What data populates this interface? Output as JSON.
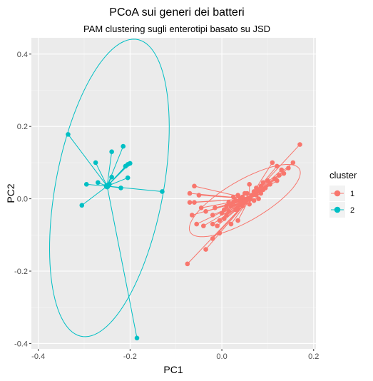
{
  "chart_data": {
    "type": "scatter",
    "title": "PCoA sui generi dei batteri",
    "subtitle": "PAM clustering sugli enterotipi basato su JSD",
    "xlabel": "PC1",
    "ylabel": "PC2",
    "xlim": [
      -0.415,
      0.205
    ],
    "ylim": [
      -0.415,
      0.445
    ],
    "x_ticks": [
      -0.4,
      -0.2,
      0.0,
      0.2
    ],
    "x_tick_labels": [
      "-0.4",
      "-0.2",
      "0.0",
      "0.2"
    ],
    "y_ticks": [
      -0.4,
      -0.2,
      0.0,
      0.2,
      0.4
    ],
    "y_tick_labels": [
      "-0.4",
      "-0.2",
      "0.0",
      "0.2",
      "0.4"
    ],
    "grid": true,
    "legend": {
      "title": "cluster",
      "position": "right"
    },
    "series": [
      {
        "name": "1",
        "color": "#F8766D",
        "centroid": [
          0.06,
          0.0
        ],
        "ellipse": {
          "center": [
            0.05,
            -0.005
          ],
          "semi_major": 0.148,
          "semi_minor": 0.052,
          "angle_deg": 38
        },
        "points": [
          [
            0.17,
            0.15
          ],
          [
            0.155,
            0.1
          ],
          [
            0.145,
            0.085
          ],
          [
            0.135,
            0.07
          ],
          [
            0.13,
            0.08
          ],
          [
            0.125,
            0.065
          ],
          [
            0.12,
            0.05
          ],
          [
            0.115,
            0.055
          ],
          [
            0.105,
            0.04
          ],
          [
            0.1,
            0.05
          ],
          [
            0.095,
            0.03
          ],
          [
            0.09,
            0.045
          ],
          [
            0.09,
            0.025
          ],
          [
            0.085,
            0.035
          ],
          [
            0.085,
            0.015
          ],
          [
            0.08,
            0.02
          ],
          [
            0.08,
            0.0
          ],
          [
            0.075,
            0.03
          ],
          [
            0.075,
            0.01
          ],
          [
            0.07,
            0.02
          ],
          [
            0.07,
            -0.005
          ],
          [
            0.065,
            0.01
          ],
          [
            0.06,
            0.0
          ],
          [
            0.06,
            -0.015
          ],
          [
            0.055,
            0.015
          ],
          [
            0.055,
            0.0
          ],
          [
            0.05,
            -0.01
          ],
          [
            0.05,
            0.015
          ],
          [
            0.045,
            -0.02
          ],
          [
            0.045,
            0.005
          ],
          [
            0.04,
            0.0
          ],
          [
            0.04,
            -0.015
          ],
          [
            0.035,
            -0.025
          ],
          [
            0.035,
            0.01
          ],
          [
            0.03,
            -0.005
          ],
          [
            0.03,
            -0.03
          ],
          [
            0.025,
            -0.01
          ],
          [
            0.025,
            0.005
          ],
          [
            0.02,
            -0.02
          ],
          [
            0.015,
            -0.035
          ],
          [
            0.015,
            -0.01
          ],
          [
            0.01,
            -0.045
          ],
          [
            0.01,
            -0.02
          ],
          [
            0.005,
            -0.03
          ],
          [
            0.005,
            -0.055
          ],
          [
            0.0,
            -0.04
          ],
          [
            -0.005,
            -0.06
          ],
          [
            -0.01,
            -0.075
          ],
          [
            0.035,
            -0.06
          ],
          [
            0.02,
            -0.07
          ],
          [
            -0.015,
            -0.025
          ],
          [
            -0.02,
            -0.045
          ],
          [
            -0.02,
            -0.07
          ],
          [
            -0.035,
            -0.035
          ],
          [
            -0.04,
            -0.075
          ],
          [
            -0.045,
            -0.025
          ],
          [
            -0.05,
            0.01
          ],
          [
            -0.055,
            -0.07
          ],
          [
            -0.06,
            -0.01
          ],
          [
            -0.06,
            0.035
          ],
          [
            -0.065,
            -0.045
          ],
          [
            -0.07,
            -0.01
          ],
          [
            -0.07,
            0.015
          ],
          [
            -0.075,
            -0.18
          ],
          [
            -0.035,
            -0.14
          ],
          [
            -0.02,
            -0.11
          ],
          [
            -0.005,
            -0.095
          ],
          [
            0.06,
            0.04
          ],
          [
            0.11,
            0.1
          ],
          [
            0.12,
            0.09
          ]
        ]
      },
      {
        "name": "2",
        "color": "#00BFC4",
        "centroid": [
          -0.25,
          0.035
        ],
        "ellipse": {
          "center": [
            -0.245,
            0.03
          ],
          "semi_major": 0.415,
          "semi_minor": 0.118,
          "angle_deg": 82
        },
        "points": [
          [
            -0.335,
            0.178
          ],
          [
            -0.305,
            -0.018
          ],
          [
            -0.295,
            0.04
          ],
          [
            -0.275,
            0.1
          ],
          [
            -0.27,
            0.045
          ],
          [
            -0.245,
            0.04
          ],
          [
            -0.24,
            0.06
          ],
          [
            -0.24,
            0.13
          ],
          [
            -0.22,
            0.03
          ],
          [
            -0.215,
            0.145
          ],
          [
            -0.21,
            0.09
          ],
          [
            -0.205,
            0.058
          ],
          [
            -0.205,
            0.095
          ],
          [
            -0.2,
            0.098
          ],
          [
            -0.13,
            0.02
          ],
          [
            -0.185,
            -0.385
          ]
        ]
      }
    ]
  }
}
